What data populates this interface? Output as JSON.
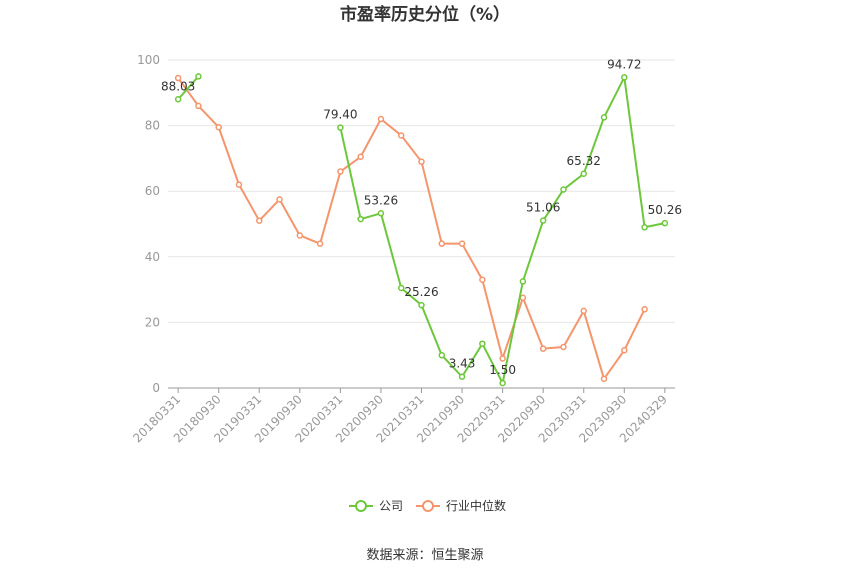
{
  "chart_data": {
    "type": "line",
    "title": "市盈率历史分位（%）",
    "xlabel": "",
    "ylabel": "",
    "ylim": [
      0,
      100
    ],
    "yticks": [
      0,
      20,
      40,
      60,
      80,
      100
    ],
    "x": [
      "20180331",
      "20180630",
      "20180930",
      "20181231",
      "20190331",
      "20190630",
      "20190930",
      "20191231",
      "20200331",
      "20200630",
      "20200930",
      "20201231",
      "20210331",
      "20210630",
      "20210930",
      "20211231",
      "20220331",
      "20220630",
      "20220930",
      "20221231",
      "20230331",
      "20230630",
      "20230930",
      "20231231",
      "20240329"
    ],
    "xtick_labels": [
      "20180331",
      "20180930",
      "20190331",
      "20190930",
      "20200331",
      "20200930",
      "20210331",
      "20210930",
      "20220331",
      "20220930",
      "20230331",
      "20230930",
      "20240329"
    ],
    "series": [
      {
        "name": "公司",
        "color": "#6cc83a",
        "values": [
          88.03,
          95.0,
          null,
          null,
          null,
          null,
          null,
          null,
          79.4,
          51.5,
          53.26,
          30.5,
          25.26,
          10.0,
          3.43,
          13.5,
          1.5,
          32.5,
          51.06,
          60.5,
          65.32,
          82.5,
          94.72,
          49.0,
          50.26
        ]
      },
      {
        "name": "行业中位数",
        "color": "#f5956b",
        "values": [
          94.5,
          86.0,
          79.5,
          62.0,
          51.0,
          57.5,
          46.5,
          44.0,
          66.0,
          70.5,
          82.0,
          77.0,
          69.0,
          44.0,
          44.0,
          33.0,
          9.0,
          27.5,
          12.0,
          12.5,
          23.5,
          2.8,
          11.5,
          24.0,
          null
        ]
      }
    ],
    "data_labels": [
      {
        "series": 0,
        "index": 0,
        "text": "88.03"
      },
      {
        "series": 0,
        "index": 8,
        "text": "79.40"
      },
      {
        "series": 0,
        "index": 10,
        "text": "53.26"
      },
      {
        "series": 0,
        "index": 12,
        "text": "25.26"
      },
      {
        "series": 0,
        "index": 14,
        "text": "3.43"
      },
      {
        "series": 0,
        "index": 16,
        "text": "1.50"
      },
      {
        "series": 0,
        "index": 18,
        "text": "51.06"
      },
      {
        "series": 0,
        "index": 20,
        "text": "65.32"
      },
      {
        "series": 0,
        "index": 22,
        "text": "94.72"
      },
      {
        "series": 0,
        "index": 24,
        "text": "50.26"
      }
    ],
    "grid": true,
    "legend_position": "bottom"
  },
  "footer": {
    "source": "数据来源：恒生聚源"
  }
}
